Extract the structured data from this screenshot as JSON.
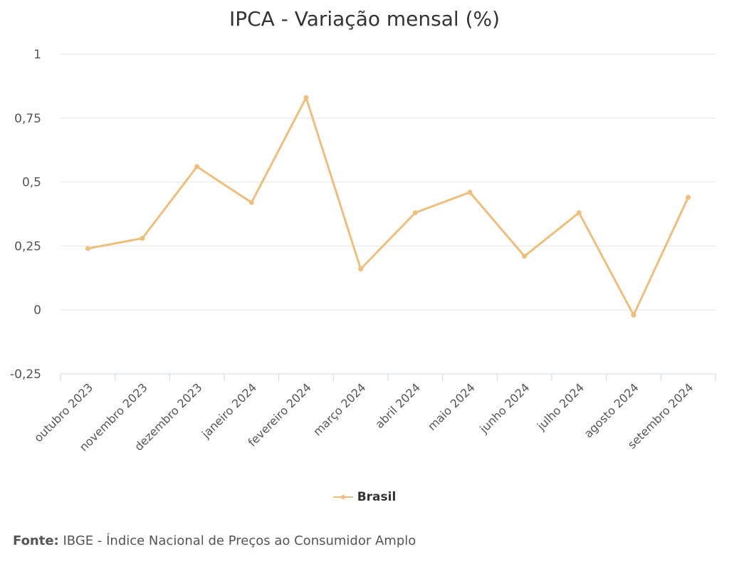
{
  "chart_data": {
    "type": "line",
    "title": "IPCA - Variação mensal (%)",
    "categories": [
      "outubro 2023",
      "novembro 2023",
      "dezembro 2023",
      "janeiro 2024",
      "fevereiro 2024",
      "março 2024",
      "abril 2024",
      "maio 2024",
      "junho 2024",
      "julho 2024",
      "agosto 2024",
      "setembro 2024"
    ],
    "series": [
      {
        "name": "Brasil",
        "values": [
          0.24,
          0.28,
          0.56,
          0.42,
          0.83,
          0.16,
          0.38,
          0.46,
          0.21,
          0.38,
          -0.02,
          0.44
        ],
        "color": "#ecbf7f"
      }
    ],
    "ylim": [
      -0.25,
      1
    ],
    "yticks": [
      -0.25,
      0,
      0.25,
      0.5,
      0.75,
      1
    ],
    "ytick_labels": [
      "-0,25",
      "0",
      "0,25",
      "0,5",
      "0,75",
      "1"
    ],
    "grid": true,
    "legend_position": "bottom-center",
    "xlabel": "",
    "ylabel": ""
  },
  "source": {
    "label": "Fonte:",
    "text": "IBGE - Índice Nacional de Preços ao Consumidor Amplo"
  },
  "colors": {
    "line": "#ecbf7f",
    "grid": "#e6e6e6",
    "axis": "#ccd6eb"
  }
}
